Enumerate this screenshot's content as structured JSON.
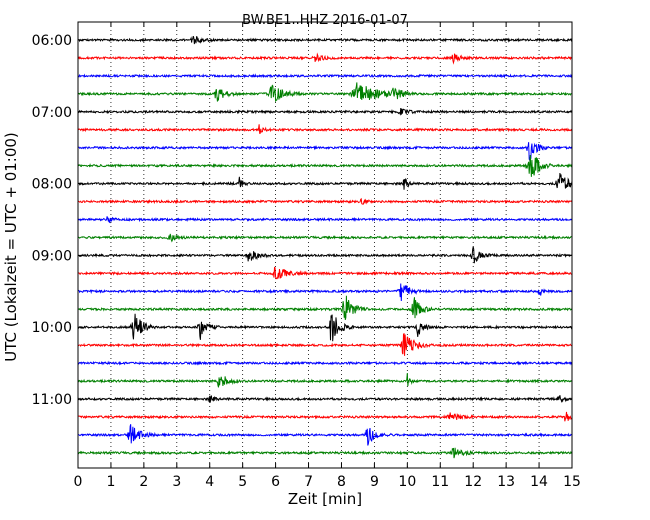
{
  "chart_data": {
    "type": "line",
    "title": "BW.BE1..HHZ 2016-01-07",
    "xlabel": "Zeit  [min]",
    "ylabel": "UTC (Lokalzeit = UTC + 01:00)",
    "xlim": [
      0,
      15
    ],
    "x_ticks": [
      "0",
      "1",
      "2",
      "3",
      "4",
      "5",
      "6",
      "7",
      "8",
      "9",
      "10",
      "11",
      "12",
      "13",
      "14",
      "15"
    ],
    "y_tick_labels": [
      "06:00",
      "07:00",
      "08:00",
      "09:00",
      "10:00",
      "11:00"
    ],
    "y_tick_trace_index": [
      0,
      4,
      8,
      12,
      16,
      20
    ],
    "grid": true,
    "trace_interval_min": 15,
    "colors": [
      "#000000",
      "#ff0000",
      "#0000ff",
      "#008000"
    ],
    "traces": [
      {
        "start": "06:00",
        "events": [
          [
            3.5,
            4,
            0.6
          ]
        ]
      },
      {
        "start": "06:15",
        "events": [
          [
            7.2,
            4,
            0.6
          ],
          [
            11.4,
            4,
            0.6
          ]
        ]
      },
      {
        "start": "06:30",
        "events": []
      },
      {
        "start": "06:45",
        "events": [
          [
            4.2,
            8,
            0.6
          ],
          [
            5.9,
            10,
            0.8
          ],
          [
            8.5,
            12,
            1.4
          ],
          [
            9.6,
            6,
            0.6
          ]
        ]
      },
      {
        "start": "07:00",
        "events": [
          [
            9.8,
            4,
            0.5
          ]
        ]
      },
      {
        "start": "07:15",
        "events": [
          [
            5.5,
            5,
            0.3
          ]
        ]
      },
      {
        "start": "07:30",
        "events": [
          [
            13.7,
            14,
            0.5
          ]
        ]
      },
      {
        "start": "07:45",
        "events": [
          [
            13.7,
            22,
            0.6
          ]
        ]
      },
      {
        "start": "08:00",
        "events": [
          [
            4.9,
            6,
            0.3
          ],
          [
            9.9,
            6,
            0.3
          ],
          [
            14.6,
            14,
            0.6
          ]
        ]
      },
      {
        "start": "08:15",
        "events": [
          [
            8.6,
            4,
            0.3
          ]
        ]
      },
      {
        "start": "08:30",
        "events": [
          [
            0.9,
            4,
            0.3
          ]
        ]
      },
      {
        "start": "08:45",
        "events": [
          [
            2.8,
            4,
            0.6
          ]
        ]
      },
      {
        "start": "09:00",
        "events": [
          [
            5.2,
            7,
            0.6
          ],
          [
            12.0,
            8,
            0.6
          ]
        ]
      },
      {
        "start": "09:15",
        "events": [
          [
            6.0,
            7,
            0.8
          ]
        ]
      },
      {
        "start": "09:30",
        "events": [
          [
            9.8,
            14,
            0.5
          ],
          [
            14.0,
            7,
            0.2
          ]
        ]
      },
      {
        "start": "09:45",
        "events": [
          [
            8.1,
            16,
            0.6
          ],
          [
            10.2,
            13,
            0.5
          ]
        ]
      },
      {
        "start": "10:00",
        "events": [
          [
            1.7,
            18,
            0.6
          ],
          [
            3.7,
            14,
            0.5
          ],
          [
            7.7,
            17,
            0.6
          ],
          [
            10.3,
            10,
            0.4
          ]
        ]
      },
      {
        "start": "10:15",
        "events": [
          [
            9.9,
            14,
            0.7
          ]
        ]
      },
      {
        "start": "10:30",
        "events": []
      },
      {
        "start": "10:45",
        "events": [
          [
            4.3,
            9,
            0.6
          ],
          [
            10.0,
            7,
            0.2
          ]
        ]
      },
      {
        "start": "11:00",
        "events": [
          [
            4.0,
            4,
            0.3
          ],
          [
            14.6,
            4,
            0.3
          ]
        ]
      },
      {
        "start": "11:15",
        "events": [
          [
            11.3,
            5,
            0.6
          ],
          [
            14.8,
            7,
            0.3
          ]
        ]
      },
      {
        "start": "11:30",
        "events": [
          [
            1.6,
            10,
            0.7
          ],
          [
            8.8,
            10,
            0.6
          ]
        ]
      },
      {
        "start": "11:45",
        "events": [
          [
            11.4,
            5,
            0.7
          ]
        ]
      }
    ]
  }
}
